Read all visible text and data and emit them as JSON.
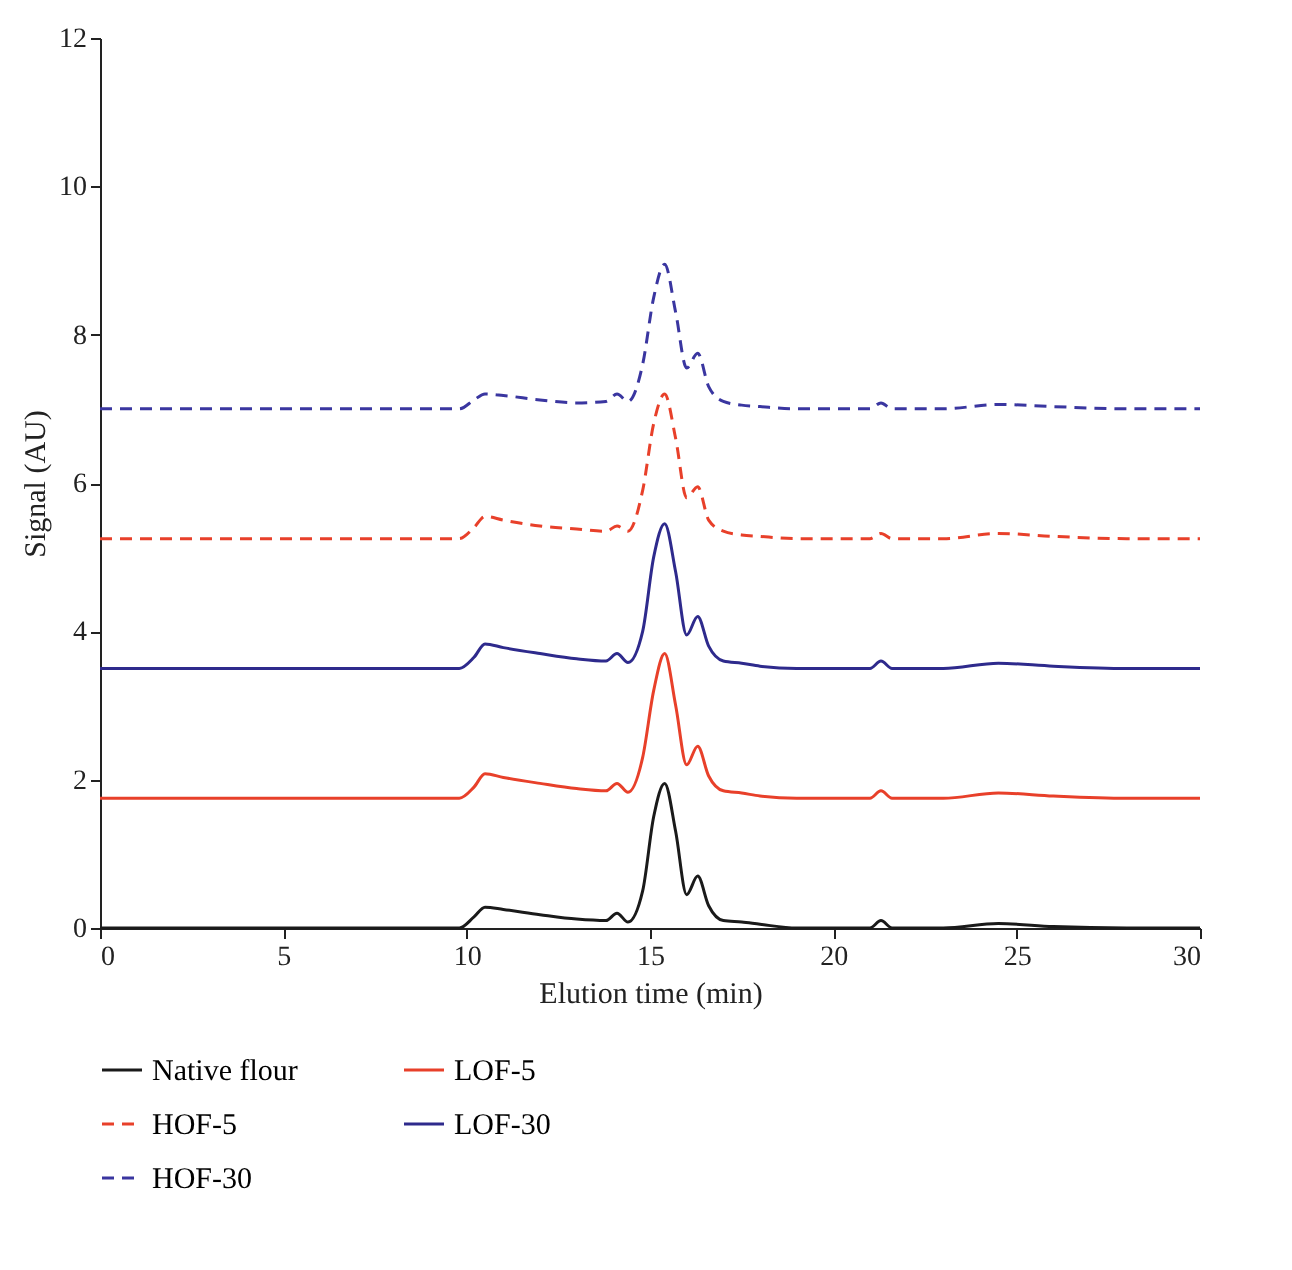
{
  "chart_data": {
    "type": "line",
    "xlabel": "Elution time (min)",
    "ylabel": "Signal (AU)",
    "xlim": [
      0,
      30
    ],
    "xticks": [
      0,
      5,
      10,
      15,
      20,
      25,
      30
    ],
    "ylim": [
      0,
      12
    ],
    "yticks": [
      0,
      2,
      4,
      6,
      8,
      10,
      12
    ],
    "grid": false,
    "legend": "bottom",
    "marker": "none",
    "x": [
      0,
      5,
      9.8,
      10.2,
      10.5,
      11,
      12,
      13,
      13.8,
      14.1,
      14.4,
      14.8,
      15.1,
      15.4,
      15.7,
      16.0,
      16.3,
      16.6,
      17,
      17.5,
      18,
      19,
      21,
      21.3,
      21.6,
      23,
      24.5,
      26,
      28,
      30
    ],
    "series": [
      {
        "name": "Native flour",
        "color": "#1a1a1a",
        "line_style": "solid",
        "values": [
          0,
          0,
          0,
          0.15,
          0.28,
          0.25,
          0.18,
          0.12,
          0.1,
          0.2,
          0.08,
          0.5,
          1.5,
          1.95,
          1.3,
          0.45,
          0.7,
          0.3,
          0.1,
          0.08,
          0.05,
          0,
          0,
          0.1,
          0,
          0,
          0.06,
          0.02,
          0,
          0
        ]
      },
      {
        "name": "LOF-5",
        "color": "#e8402a",
        "line_style": "solid",
        "values": [
          1.75,
          1.75,
          1.75,
          1.9,
          2.08,
          2.03,
          1.95,
          1.88,
          1.85,
          1.95,
          1.83,
          2.3,
          3.2,
          3.7,
          3.0,
          2.2,
          2.45,
          2.05,
          1.85,
          1.82,
          1.78,
          1.75,
          1.75,
          1.85,
          1.75,
          1.75,
          1.82,
          1.78,
          1.75,
          1.75
        ]
      },
      {
        "name": "HOF-5",
        "color": "#e8402a",
        "line_style": "dashed",
        "values": [
          5.25,
          5.25,
          5.25,
          5.4,
          5.55,
          5.5,
          5.42,
          5.38,
          5.35,
          5.42,
          5.35,
          5.9,
          6.8,
          7.2,
          6.6,
          5.8,
          5.95,
          5.5,
          5.35,
          5.3,
          5.28,
          5.25,
          5.25,
          5.32,
          5.25,
          5.25,
          5.32,
          5.28,
          5.25,
          5.25
        ]
      },
      {
        "name": "LOF-30",
        "color": "#2e2a8c",
        "line_style": "solid",
        "values": [
          3.5,
          3.5,
          3.5,
          3.65,
          3.83,
          3.78,
          3.7,
          3.63,
          3.6,
          3.7,
          3.58,
          4.0,
          5.0,
          5.45,
          4.8,
          3.95,
          4.2,
          3.8,
          3.6,
          3.57,
          3.53,
          3.5,
          3.5,
          3.6,
          3.5,
          3.5,
          3.57,
          3.53,
          3.5,
          3.5
        ]
      },
      {
        "name": "HOF-30",
        "color": "#3a36a0",
        "line_style": "dashed",
        "values": [
          7.0,
          7.0,
          7.0,
          7.12,
          7.2,
          7.18,
          7.12,
          7.08,
          7.1,
          7.2,
          7.1,
          7.6,
          8.5,
          8.95,
          8.3,
          7.55,
          7.75,
          7.3,
          7.1,
          7.05,
          7.03,
          7.0,
          7.0,
          7.08,
          7.0,
          7.0,
          7.06,
          7.03,
          7.0,
          7.0
        ]
      }
    ]
  }
}
